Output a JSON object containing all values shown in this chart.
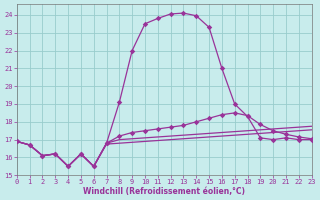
{
  "xlabel": "Windchill (Refroidissement éolien,°C)",
  "bg_color": "#c8ecec",
  "line_color": "#993399",
  "grid_color": "#99cccc",
  "xlim": [
    0,
    23
  ],
  "ylim": [
    15.0,
    24.6
  ],
  "ytick_vals": [
    15,
    16,
    17,
    18,
    19,
    20,
    21,
    22,
    23,
    24
  ],
  "xtick_vals": [
    0,
    1,
    2,
    3,
    4,
    5,
    6,
    7,
    8,
    9,
    10,
    11,
    12,
    13,
    14,
    15,
    16,
    17,
    18,
    19,
    20,
    21,
    22,
    23
  ],
  "c1x": [
    0,
    1,
    2,
    3,
    4,
    5,
    6,
    7,
    8,
    9,
    10,
    11,
    12,
    13,
    14,
    15,
    16,
    17,
    18,
    19,
    20,
    21,
    22,
    23
  ],
  "c1y": [
    16.9,
    16.7,
    16.1,
    16.2,
    15.5,
    16.2,
    15.5,
    16.8,
    19.1,
    22.0,
    23.5,
    23.8,
    24.05,
    24.1,
    23.95,
    23.3,
    21.0,
    19.0,
    18.3,
    17.1,
    17.0,
    17.1,
    17.0,
    17.0
  ],
  "c2x": [
    0,
    1,
    2,
    3,
    4,
    5,
    6,
    7,
    8,
    9,
    10,
    11,
    12,
    13,
    14,
    15,
    16,
    17,
    18,
    19,
    20,
    21,
    22,
    23
  ],
  "c2y": [
    16.9,
    16.7,
    16.1,
    16.2,
    15.5,
    16.2,
    15.5,
    16.8,
    17.2,
    17.4,
    17.5,
    17.6,
    17.7,
    17.8,
    18.0,
    18.2,
    18.4,
    18.5,
    18.35,
    17.85,
    17.5,
    17.3,
    17.15,
    17.05
  ],
  "c3x": [
    0,
    1,
    2,
    3,
    4,
    5,
    6,
    7,
    8,
    9,
    10,
    11,
    12,
    13,
    14,
    15,
    16,
    17,
    18,
    19,
    20,
    21,
    22,
    23
  ],
  "c3y": [
    16.9,
    16.7,
    16.1,
    16.2,
    15.5,
    16.2,
    15.5,
    16.8,
    17.0,
    17.05,
    17.1,
    17.15,
    17.2,
    17.25,
    17.3,
    17.35,
    17.4,
    17.45,
    17.5,
    17.55,
    17.6,
    17.65,
    17.7,
    17.75
  ],
  "c4x": [
    0,
    1,
    2,
    3,
    4,
    5,
    6,
    7,
    8,
    9,
    10,
    11,
    12,
    13,
    14,
    15,
    16,
    17,
    18,
    19,
    20,
    21,
    22,
    23
  ],
  "c4y": [
    16.9,
    16.7,
    16.1,
    16.2,
    15.5,
    16.2,
    15.5,
    16.75,
    16.8,
    16.85,
    16.9,
    16.95,
    17.0,
    17.05,
    17.1,
    17.15,
    17.2,
    17.25,
    17.3,
    17.35,
    17.4,
    17.45,
    17.5,
    17.55
  ]
}
